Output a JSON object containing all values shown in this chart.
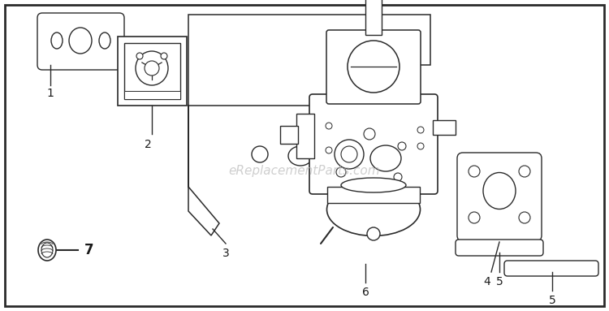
{
  "background_color": "#ffffff",
  "border_color": "#1a1a1a",
  "line_color": "#2a2a2a",
  "fill_white": "#ffffff",
  "fill_light": "#f5f5f5",
  "watermark_text": "eReplacementParts.com",
  "watermark_color": "#bbbbbb",
  "watermark_alpha": 0.7,
  "watermark_fontsize": 11,
  "label_fontsize": 10,
  "label_color": "#1a1a1a",
  "figsize": [
    7.5,
    3.83
  ],
  "dpi": 100
}
